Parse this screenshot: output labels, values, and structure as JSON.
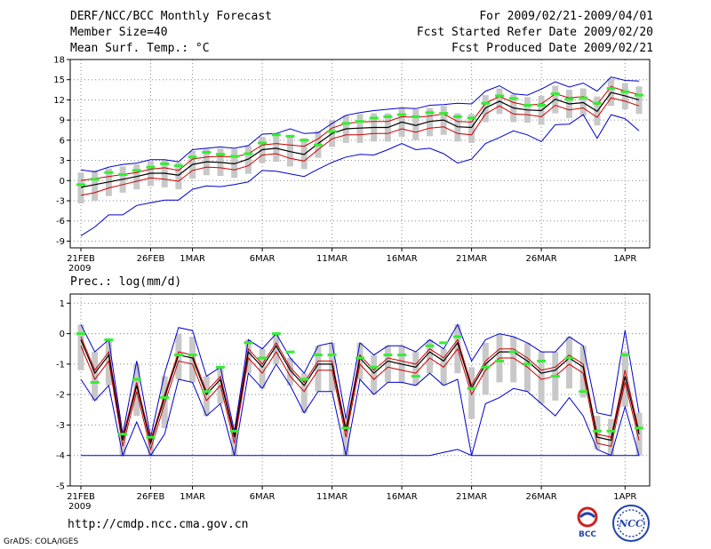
{
  "header": {
    "title": "DERF/NCC/BCC Monthly Forecast",
    "member_size": "Member Size=40",
    "variable1": "Mean Surf. Temp.: °C",
    "period": "For 2009/02/21-2009/04/01",
    "start_date": "Fcst Started Refer Date 2009/02/20",
    "produced_date": "Fcst Produced Date 2009/02/21"
  },
  "panel2": {
    "label": "Prec.: log(mm/d)"
  },
  "footer": {
    "url": "http://cmdp.ncc.cma.gov.cn",
    "grads": "GrADS: COLA/IGES"
  },
  "logos": {
    "bcc": "BCC",
    "ncc": "NCC"
  },
  "colors": {
    "ensemble_max_min": "#0000cc",
    "spread": "#cc0000",
    "mean": "#000000",
    "obs": "#33ee33",
    "bar": "#c8c8c8",
    "grid": "#888888"
  },
  "chart_data": [
    {
      "type": "line",
      "title": "Mean Surf. Temp.: °C",
      "ylim": [
        -10,
        18
      ],
      "yticks": [
        -9,
        -6,
        -3,
        0,
        3,
        6,
        9,
        12,
        15,
        18
      ],
      "xticks": [
        {
          "day": 0,
          "label": "21FEB"
        },
        {
          "day": 5,
          "label": "26FEB"
        },
        {
          "day": 8,
          "label": "1MAR"
        },
        {
          "day": 13,
          "label": "6MAR"
        },
        {
          "day": 18,
          "label": "11MAR"
        },
        {
          "day": 23,
          "label": "16MAR"
        },
        {
          "day": 28,
          "label": "21MAR"
        },
        {
          "day": 33,
          "label": "26MAR"
        },
        {
          "day": 39,
          "label": "1APR"
        }
      ],
      "year_label": "2009",
      "series": [
        {
          "name": "max",
          "values": [
            1.6,
            1.3,
            2,
            2.4,
            2.6,
            3.1,
            3.1,
            2.8,
            4.6,
            4.8,
            5,
            4.8,
            5.2,
            6.9,
            7,
            7.7,
            7,
            7.1,
            8.5,
            9.7,
            10.1,
            10.4,
            10.6,
            10.8,
            10.7,
            11.2,
            11.3,
            11.5,
            11.4,
            13.3,
            14.1,
            12.9,
            12.7,
            13.6,
            14.7,
            13.9,
            14.5,
            13.3,
            15.4,
            14.9,
            14.8
          ]
        },
        {
          "name": "spread_upper",
          "values": [
            0,
            0.3,
            0.6,
            0.9,
            1.2,
            1.7,
            1.9,
            1.5,
            3.2,
            3.5,
            3.6,
            3.5,
            4,
            5.3,
            5.5,
            5.3,
            5.1,
            6.2,
            7.8,
            8.5,
            8.7,
            8.8,
            8.8,
            9.5,
            9.4,
            9.6,
            9.9,
            8.8,
            8.7,
            11.5,
            12.5,
            11.6,
            11.2,
            11.4,
            12.9,
            12.3,
            12.5,
            11.3,
            14,
            13.3,
            12.8
          ]
        },
        {
          "name": "mean",
          "values": [
            -1,
            -0.6,
            -0.2,
            0.2,
            0.6,
            1.1,
            1.1,
            0.8,
            2.4,
            2.8,
            2.7,
            2.5,
            3.2,
            4.6,
            4.8,
            4.3,
            3.9,
            5.5,
            7,
            7.7,
            7.8,
            7.9,
            7.9,
            8.7,
            8.2,
            8.8,
            9,
            8,
            7.9,
            10.8,
            11.8,
            10.8,
            10.5,
            10.4,
            12.1,
            11.4,
            11.6,
            10.3,
            13.1,
            12.6,
            12
          ]
        },
        {
          "name": "spread_lower",
          "values": [
            -2.2,
            -1.8,
            -1.1,
            -0.6,
            -0.1,
            0.4,
            0.2,
            -0.1,
            1.5,
            2,
            1.9,
            1.6,
            2.2,
            3.8,
            4,
            3.3,
            2.9,
            4.6,
            6.2,
            6.8,
            6.8,
            7,
            7,
            7.7,
            7.2,
            7.8,
            8,
            7,
            6.8,
            9.9,
            11.1,
            9.9,
            9.8,
            9.5,
            11.2,
            10.5,
            10.8,
            9.4,
            12.3,
            11.8,
            11.1
          ]
        },
        {
          "name": "min",
          "values": [
            -8.2,
            -6.9,
            -5.1,
            -5.1,
            -3.7,
            -3.3,
            -2.9,
            -2.9,
            -1.3,
            -0.8,
            -0.9,
            -0.6,
            -0.2,
            1.5,
            1.4,
            1,
            0.6,
            1.7,
            2.7,
            3.5,
            3.9,
            3.8,
            4.6,
            5.5,
            4.6,
            4.8,
            4,
            2.6,
            3.2,
            5.5,
            6.4,
            7.4,
            6.8,
            5.8,
            8.3,
            8.4,
            9.8,
            6.3,
            9.8,
            9.2,
            7.4
          ]
        },
        {
          "name": "obs",
          "values": [
            -0.6,
            0.2,
            1.2,
            0.9,
            1.5,
            2,
            2.5,
            2.2,
            3.5,
            4.2,
            3.9,
            3.6,
            4,
            5.6,
            6.8,
            6.6,
            6,
            5.3,
            7.3,
            8.5,
            8.8,
            9.3,
            9.5,
            9.8,
            9.5,
            10.1,
            10,
            9.5,
            9.3,
            11.5,
            12.6,
            12.2,
            11.2,
            11.2,
            12.9,
            12.1,
            12.3,
            11.5,
            13.7,
            13.2,
            12.7
          ]
        }
      ]
    },
    {
      "type": "line",
      "title": "Prec.: log(mm/d)",
      "ylim": [
        -5,
        1.3
      ],
      "yticks": [
        -5,
        -4,
        -3,
        -2,
        -1,
        0,
        1
      ],
      "xticks": [
        {
          "day": 0,
          "label": "21FEB"
        },
        {
          "day": 5,
          "label": "26FEB"
        },
        {
          "day": 8,
          "label": "1MAR"
        },
        {
          "day": 13,
          "label": "6MAR"
        },
        {
          "day": 18,
          "label": "11MAR"
        },
        {
          "day": 23,
          "label": "16MAR"
        },
        {
          "day": 28,
          "label": "21MAR"
        },
        {
          "day": 33,
          "label": "26MAR"
        },
        {
          "day": 39,
          "label": "1APR"
        }
      ],
      "year_label": "2009",
      "series": [
        {
          "name": "max",
          "values": [
            0.3,
            -0.6,
            -0.2,
            -3.3,
            -0.9,
            -3.4,
            -1.3,
            0.2,
            0.1,
            -1.4,
            -1.1,
            -3.2,
            -0.2,
            -0.5,
            0,
            -0.8,
            -1.3,
            -0.4,
            -0.3,
            -2.8,
            -0.3,
            -0.7,
            -0.4,
            -0.4,
            -0.6,
            -0.2,
            -0.5,
            0.3,
            -0.9,
            -0.2,
            0,
            -0.1,
            -0.3,
            -0.6,
            -0.6,
            -0.1,
            -0.4,
            -2.6,
            -2.7,
            0.1,
            -2.6
          ]
        },
        {
          "name": "spread_upper",
          "values": [
            -0.1,
            -1.2,
            -0.6,
            -3.4,
            -1.6,
            -3.5,
            -2,
            -0.6,
            -0.7,
            -1.9,
            -1.4,
            -3.3,
            -0.5,
            -1,
            -0.3,
            -1.1,
            -1.6,
            -0.9,
            -0.9,
            -3.1,
            -0.7,
            -1.2,
            -0.8,
            -0.9,
            -1,
            -0.5,
            -0.8,
            -0.2,
            -1.7,
            -0.9,
            -0.5,
            -0.5,
            -0.8,
            -1.2,
            -1.1,
            -0.7,
            -1,
            -3.3,
            -3.4,
            -1.2,
            -3.2
          ]
        },
        {
          "name": "mean",
          "values": [
            -0.2,
            -1.3,
            -0.7,
            -3.5,
            -1.7,
            -3.6,
            -2.1,
            -0.7,
            -0.8,
            -2,
            -1.5,
            -3.4,
            -0.6,
            -1.1,
            -0.4,
            -1.2,
            -1.7,
            -1,
            -1,
            -3.2,
            -0.8,
            -1.3,
            -0.9,
            -1,
            -1.1,
            -0.6,
            -0.9,
            -0.3,
            -1.8,
            -1,
            -0.6,
            -0.6,
            -0.9,
            -1.3,
            -1.2,
            -0.8,
            -1.1,
            -3.4,
            -3.5,
            -1.4,
            -3.3
          ]
        },
        {
          "name": "spread_lower",
          "values": [
            -0.4,
            -1.5,
            -0.9,
            -3.7,
            -1.9,
            -3.8,
            -2.3,
            -0.9,
            -1,
            -2.2,
            -1.7,
            -3.6,
            -0.8,
            -1.3,
            -0.6,
            -1.4,
            -1.9,
            -1.2,
            -1.2,
            -3.4,
            -1,
            -1.5,
            -1.1,
            -1.2,
            -1.3,
            -0.8,
            -1.1,
            -0.5,
            -2,
            -1.2,
            -0.8,
            -0.8,
            -1.1,
            -1.5,
            -1.4,
            -1,
            -1.3,
            -3.6,
            -3.7,
            -1.6,
            -3.5
          ]
        },
        {
          "name": "min",
          "values": [
            -1.5,
            -2.2,
            -1.7,
            -4,
            -2.9,
            -4,
            -3.3,
            -1.5,
            -1.6,
            -2.7,
            -2.3,
            -4,
            -1.3,
            -1.8,
            -1,
            -1.7,
            -2.6,
            -1.9,
            -1.9,
            -4,
            -1.5,
            -2,
            -1.6,
            -1.6,
            -1.7,
            -1.3,
            -1.7,
            -1.5,
            -4,
            -2.3,
            -2.1,
            -1.8,
            -1.9,
            -2.3,
            -2.7,
            -2.1,
            -2.7,
            -3.8,
            -4,
            -2.4,
            -4
          ]
        },
        {
          "name": "floor",
          "values": [
            -4,
            -4,
            -4,
            -4,
            -4,
            -4,
            -4,
            -4,
            -4,
            -4,
            -4,
            -4,
            -4,
            -4,
            -4,
            -4,
            -4,
            -4,
            -4,
            -4,
            -4,
            -4,
            -4,
            -4,
            -4,
            -4,
            -3.9,
            -3.8,
            -4,
            -4,
            -4,
            -4,
            -4,
            -4,
            -4,
            -4,
            -4,
            -4,
            -4,
            -4,
            -4
          ]
        },
        {
          "name": "obs",
          "values": [
            0,
            -1.6,
            -0.2,
            -3.3,
            -1.5,
            -3.4,
            -2.1,
            -0.7,
            -0.7,
            -1.9,
            -1.1,
            -3.2,
            -0.3,
            -0.8,
            0,
            -0.6,
            -1.5,
            -0.7,
            -0.7,
            -3.1,
            -0.8,
            -1.1,
            -0.7,
            -0.7,
            -1.4,
            -0.4,
            -0.3,
            -0.1,
            -1.8,
            -1.1,
            -0.9,
            -0.6,
            -1,
            -0.9,
            -1.4,
            -0.8,
            -1.9,
            -3.2,
            -3.2,
            -0.7,
            -3.1
          ]
        }
      ]
    }
  ]
}
